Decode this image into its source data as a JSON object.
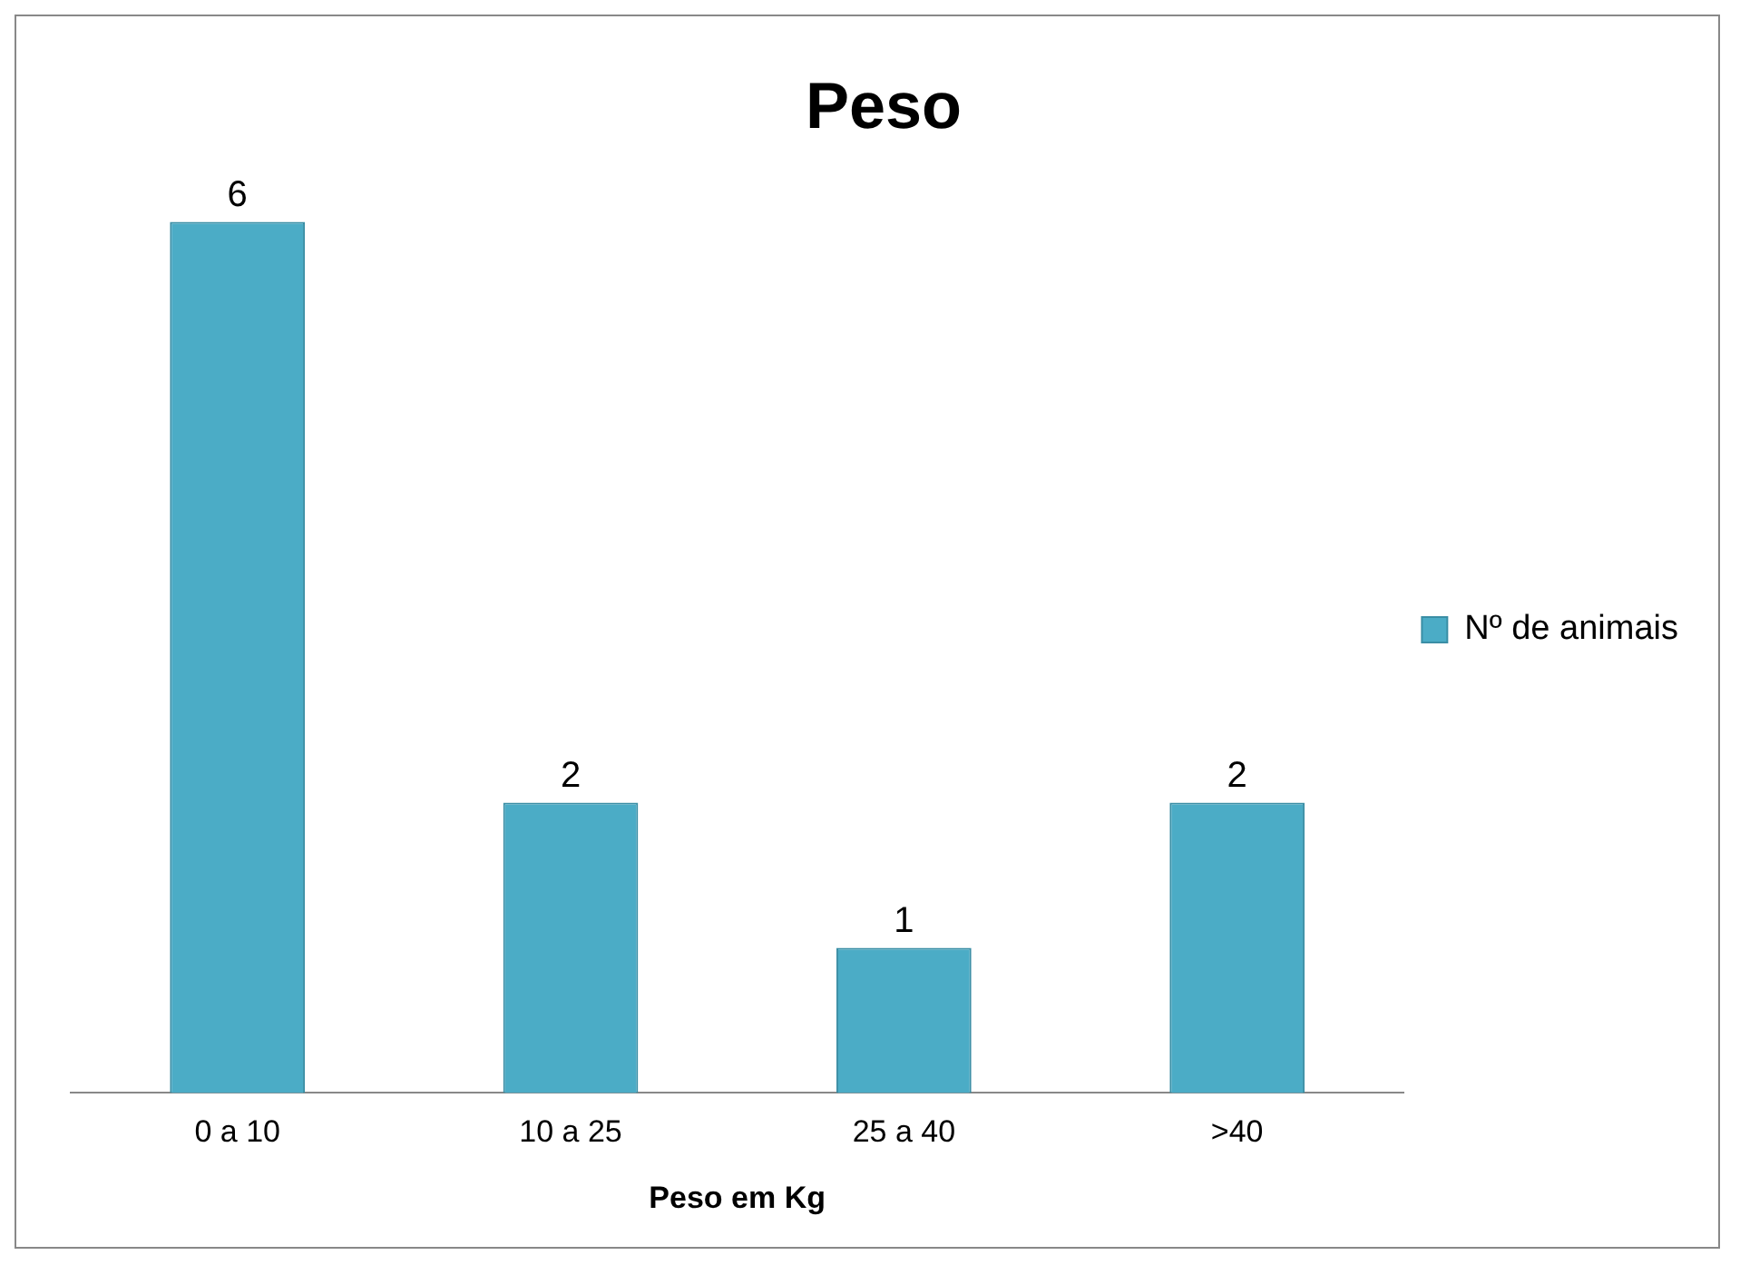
{
  "chart_data": {
    "type": "bar",
    "title": "Peso",
    "xlabel": "Peso em Kg",
    "categories": [
      "0 a 10",
      "10 a 25",
      "25 a 40",
      ">40"
    ],
    "series": [
      {
        "name": "Nº de animais",
        "color": "#4bacc6",
        "values": [
          6,
          2,
          1,
          2
        ]
      }
    ],
    "data_labels": true,
    "legend": "right",
    "grid": false
  }
}
